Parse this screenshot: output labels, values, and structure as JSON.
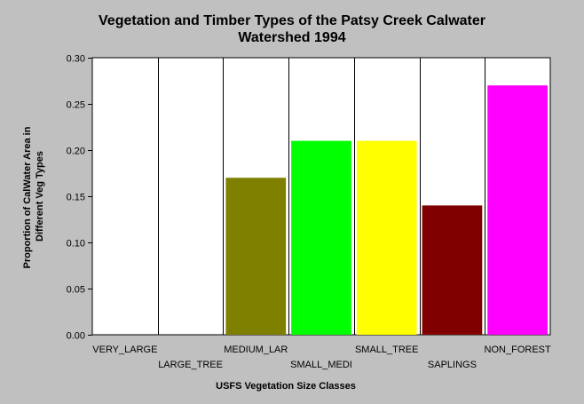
{
  "chart_data": {
    "type": "bar",
    "title_lines": [
      "Vegetation and Timber Types of the Patsy Creek Calwater",
      "Watershed 1994"
    ],
    "xlabel": "USFS Vegetation Size Classes",
    "ylabel_lines": [
      "Proportion of CalWater Area in",
      "Different Veg Types"
    ],
    "categories": [
      "VERY_LARGE",
      "LARGE_TREE",
      "MEDIUM_LAR",
      "SMALL_MEDI",
      "SMALL_TREE",
      "SAPLINGS",
      "NON_FOREST"
    ],
    "values": [
      0,
      0,
      0.17,
      0.21,
      0.21,
      0.14,
      0.27
    ],
    "colors": [
      "#808080",
      "#808080",
      "#808000",
      "#00ff00",
      "#ffff00",
      "#800000",
      "#ff00ff"
    ],
    "ylim": [
      0,
      0.3
    ],
    "yticks": [
      "0.00",
      "0.05",
      "0.10",
      "0.15",
      "0.20",
      "0.25",
      "0.30"
    ],
    "grid": true,
    "legend": "none"
  }
}
